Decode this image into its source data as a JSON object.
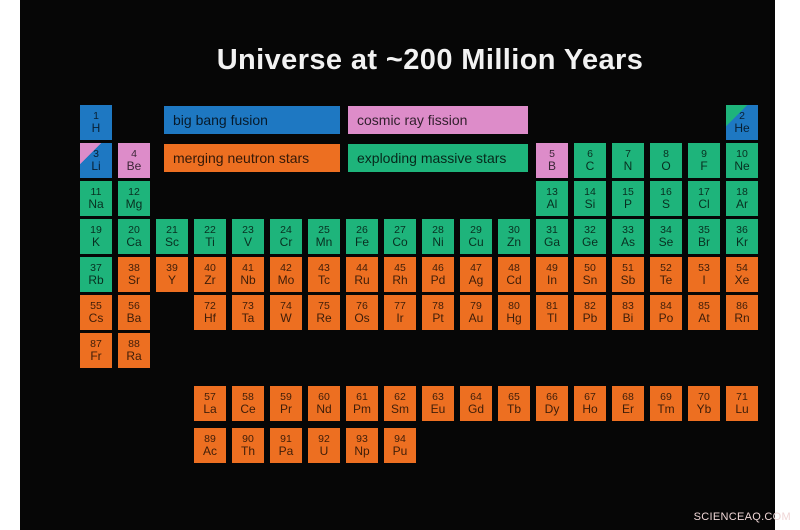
{
  "title": "Universe at ~200 Million Years",
  "watermark": "SCIENCEAQ.COM",
  "colors": {
    "background": "#060606",
    "title_text": "#f2f2f2",
    "cell_text": "#1c1c1c",
    "margin_strips": "#ffffff",
    "watermark_text": "#efd6d6"
  },
  "categories": {
    "bb": {
      "label": "big bang fusion",
      "color": "#1e78c2"
    },
    "cr": {
      "label": "cosmic ray fission",
      "color": "#dd8cc9"
    },
    "mn": {
      "label": "merging neutron stars",
      "color": "#ed6f21"
    },
    "em": {
      "label": "exploding massive stars",
      "color": "#1eb47b"
    }
  },
  "legend_order": [
    "bb",
    "cr",
    "mn",
    "em"
  ],
  "elements": [
    {
      "n": 1,
      "s": "H",
      "r": 1,
      "c": 1,
      "k": "bb"
    },
    {
      "n": 2,
      "s": "He",
      "r": 1,
      "c": 18,
      "k": "bb",
      "corner": "em"
    },
    {
      "n": 3,
      "s": "Li",
      "r": 2,
      "c": 1,
      "k": "bb",
      "corner": "cr"
    },
    {
      "n": 4,
      "s": "Be",
      "r": 2,
      "c": 2,
      "k": "cr"
    },
    {
      "n": 5,
      "s": "B",
      "r": 2,
      "c": 13,
      "k": "cr"
    },
    {
      "n": 6,
      "s": "C",
      "r": 2,
      "c": 14,
      "k": "em"
    },
    {
      "n": 7,
      "s": "N",
      "r": 2,
      "c": 15,
      "k": "em"
    },
    {
      "n": 8,
      "s": "O",
      "r": 2,
      "c": 16,
      "k": "em"
    },
    {
      "n": 9,
      "s": "F",
      "r": 2,
      "c": 17,
      "k": "em"
    },
    {
      "n": 10,
      "s": "Ne",
      "r": 2,
      "c": 18,
      "k": "em"
    },
    {
      "n": 11,
      "s": "Na",
      "r": 3,
      "c": 1,
      "k": "em"
    },
    {
      "n": 12,
      "s": "Mg",
      "r": 3,
      "c": 2,
      "k": "em"
    },
    {
      "n": 13,
      "s": "Al",
      "r": 3,
      "c": 13,
      "k": "em"
    },
    {
      "n": 14,
      "s": "Si",
      "r": 3,
      "c": 14,
      "k": "em"
    },
    {
      "n": 15,
      "s": "P",
      "r": 3,
      "c": 15,
      "k": "em"
    },
    {
      "n": 16,
      "s": "S",
      "r": 3,
      "c": 16,
      "k": "em"
    },
    {
      "n": 17,
      "s": "Cl",
      "r": 3,
      "c": 17,
      "k": "em"
    },
    {
      "n": 18,
      "s": "Ar",
      "r": 3,
      "c": 18,
      "k": "em"
    },
    {
      "n": 19,
      "s": "K",
      "r": 4,
      "c": 1,
      "k": "em"
    },
    {
      "n": 20,
      "s": "Ca",
      "r": 4,
      "c": 2,
      "k": "em"
    },
    {
      "n": 21,
      "s": "Sc",
      "r": 4,
      "c": 3,
      "k": "em"
    },
    {
      "n": 22,
      "s": "Ti",
      "r": 4,
      "c": 4,
      "k": "em"
    },
    {
      "n": 23,
      "s": "V",
      "r": 4,
      "c": 5,
      "k": "em"
    },
    {
      "n": 24,
      "s": "Cr",
      "r": 4,
      "c": 6,
      "k": "em"
    },
    {
      "n": 25,
      "s": "Mn",
      "r": 4,
      "c": 7,
      "k": "em"
    },
    {
      "n": 26,
      "s": "Fe",
      "r": 4,
      "c": 8,
      "k": "em"
    },
    {
      "n": 27,
      "s": "Co",
      "r": 4,
      "c": 9,
      "k": "em"
    },
    {
      "n": 28,
      "s": "Ni",
      "r": 4,
      "c": 10,
      "k": "em"
    },
    {
      "n": 29,
      "s": "Cu",
      "r": 4,
      "c": 11,
      "k": "em"
    },
    {
      "n": 30,
      "s": "Zn",
      "r": 4,
      "c": 12,
      "k": "em"
    },
    {
      "n": 31,
      "s": "Ga",
      "r": 4,
      "c": 13,
      "k": "em"
    },
    {
      "n": 32,
      "s": "Ge",
      "r": 4,
      "c": 14,
      "k": "em"
    },
    {
      "n": 33,
      "s": "As",
      "r": 4,
      "c": 15,
      "k": "em"
    },
    {
      "n": 34,
      "s": "Se",
      "r": 4,
      "c": 16,
      "k": "em"
    },
    {
      "n": 35,
      "s": "Br",
      "r": 4,
      "c": 17,
      "k": "em"
    },
    {
      "n": 36,
      "s": "Kr",
      "r": 4,
      "c": 18,
      "k": "em"
    },
    {
      "n": 37,
      "s": "Rb",
      "r": 5,
      "c": 1,
      "k": "em"
    },
    {
      "n": 38,
      "s": "Sr",
      "r": 5,
      "c": 2,
      "k": "mn"
    },
    {
      "n": 39,
      "s": "Y",
      "r": 5,
      "c": 3,
      "k": "mn"
    },
    {
      "n": 40,
      "s": "Zr",
      "r": 5,
      "c": 4,
      "k": "mn"
    },
    {
      "n": 41,
      "s": "Nb",
      "r": 5,
      "c": 5,
      "k": "mn"
    },
    {
      "n": 42,
      "s": "Mo",
      "r": 5,
      "c": 6,
      "k": "mn"
    },
    {
      "n": 43,
      "s": "Tc",
      "r": 5,
      "c": 7,
      "k": "mn"
    },
    {
      "n": 44,
      "s": "Ru",
      "r": 5,
      "c": 8,
      "k": "mn"
    },
    {
      "n": 45,
      "s": "Rh",
      "r": 5,
      "c": 9,
      "k": "mn"
    },
    {
      "n": 46,
      "s": "Pd",
      "r": 5,
      "c": 10,
      "k": "mn"
    },
    {
      "n": 47,
      "s": "Ag",
      "r": 5,
      "c": 11,
      "k": "mn"
    },
    {
      "n": 48,
      "s": "Cd",
      "r": 5,
      "c": 12,
      "k": "mn"
    },
    {
      "n": 49,
      "s": "In",
      "r": 5,
      "c": 13,
      "k": "mn"
    },
    {
      "n": 50,
      "s": "Sn",
      "r": 5,
      "c": 14,
      "k": "mn"
    },
    {
      "n": 51,
      "s": "Sb",
      "r": 5,
      "c": 15,
      "k": "mn"
    },
    {
      "n": 52,
      "s": "Te",
      "r": 5,
      "c": 16,
      "k": "mn"
    },
    {
      "n": 53,
      "s": "I",
      "r": 5,
      "c": 17,
      "k": "mn"
    },
    {
      "n": 54,
      "s": "Xe",
      "r": 5,
      "c": 18,
      "k": "mn"
    },
    {
      "n": 55,
      "s": "Cs",
      "r": 6,
      "c": 1,
      "k": "mn"
    },
    {
      "n": 56,
      "s": "Ba",
      "r": 6,
      "c": 2,
      "k": "mn"
    },
    {
      "n": 72,
      "s": "Hf",
      "r": 6,
      "c": 4,
      "k": "mn"
    },
    {
      "n": 73,
      "s": "Ta",
      "r": 6,
      "c": 5,
      "k": "mn"
    },
    {
      "n": 74,
      "s": "W",
      "r": 6,
      "c": 6,
      "k": "mn"
    },
    {
      "n": 75,
      "s": "Re",
      "r": 6,
      "c": 7,
      "k": "mn"
    },
    {
      "n": 76,
      "s": "Os",
      "r": 6,
      "c": 8,
      "k": "mn"
    },
    {
      "n": 77,
      "s": "Ir",
      "r": 6,
      "c": 9,
      "k": "mn"
    },
    {
      "n": 78,
      "s": "Pt",
      "r": 6,
      "c": 10,
      "k": "mn"
    },
    {
      "n": 79,
      "s": "Au",
      "r": 6,
      "c": 11,
      "k": "mn"
    },
    {
      "n": 80,
      "s": "Hg",
      "r": 6,
      "c": 12,
      "k": "mn"
    },
    {
      "n": 81,
      "s": "Tl",
      "r": 6,
      "c": 13,
      "k": "mn"
    },
    {
      "n": 82,
      "s": "Pb",
      "r": 6,
      "c": 14,
      "k": "mn"
    },
    {
      "n": 83,
      "s": "Bi",
      "r": 6,
      "c": 15,
      "k": "mn"
    },
    {
      "n": 84,
      "s": "Po",
      "r": 6,
      "c": 16,
      "k": "mn"
    },
    {
      "n": 85,
      "s": "At",
      "r": 6,
      "c": 17,
      "k": "mn"
    },
    {
      "n": 86,
      "s": "Rn",
      "r": 6,
      "c": 18,
      "k": "mn"
    },
    {
      "n": 87,
      "s": "Fr",
      "r": 7,
      "c": 1,
      "k": "mn"
    },
    {
      "n": 88,
      "s": "Ra",
      "r": 7,
      "c": 2,
      "k": "mn"
    },
    {
      "n": 57,
      "s": "La",
      "r": 8,
      "c": 4,
      "k": "mn"
    },
    {
      "n": 58,
      "s": "Ce",
      "r": 8,
      "c": 5,
      "k": "mn"
    },
    {
      "n": 59,
      "s": "Pr",
      "r": 8,
      "c": 6,
      "k": "mn"
    },
    {
      "n": 60,
      "s": "Nd",
      "r": 8,
      "c": 7,
      "k": "mn"
    },
    {
      "n": 61,
      "s": "Pm",
      "r": 8,
      "c": 8,
      "k": "mn"
    },
    {
      "n": 62,
      "s": "Sm",
      "r": 8,
      "c": 9,
      "k": "mn"
    },
    {
      "n": 63,
      "s": "Eu",
      "r": 8,
      "c": 10,
      "k": "mn"
    },
    {
      "n": 64,
      "s": "Gd",
      "r": 8,
      "c": 11,
      "k": "mn"
    },
    {
      "n": 65,
      "s": "Tb",
      "r": 8,
      "c": 12,
      "k": "mn"
    },
    {
      "n": 66,
      "s": "Dy",
      "r": 8,
      "c": 13,
      "k": "mn"
    },
    {
      "n": 67,
      "s": "Ho",
      "r": 8,
      "c": 14,
      "k": "mn"
    },
    {
      "n": 68,
      "s": "Er",
      "r": 8,
      "c": 15,
      "k": "mn"
    },
    {
      "n": 69,
      "s": "Tm",
      "r": 8,
      "c": 16,
      "k": "mn"
    },
    {
      "n": 70,
      "s": "Yb",
      "r": 8,
      "c": 17,
      "k": "mn"
    },
    {
      "n": 71,
      "s": "Lu",
      "r": 8,
      "c": 18,
      "k": "mn"
    },
    {
      "n": 89,
      "s": "Ac",
      "r": 9,
      "c": 4,
      "k": "mn"
    },
    {
      "n": 90,
      "s": "Th",
      "r": 9,
      "c": 5,
      "k": "mn"
    },
    {
      "n": 91,
      "s": "Pa",
      "r": 9,
      "c": 6,
      "k": "mn"
    },
    {
      "n": 92,
      "s": "U",
      "r": 9,
      "c": 7,
      "k": "mn"
    },
    {
      "n": 93,
      "s": "Np",
      "r": 9,
      "c": 8,
      "k": "mn"
    },
    {
      "n": 94,
      "s": "Pu",
      "r": 9,
      "c": 9,
      "k": "mn"
    }
  ]
}
